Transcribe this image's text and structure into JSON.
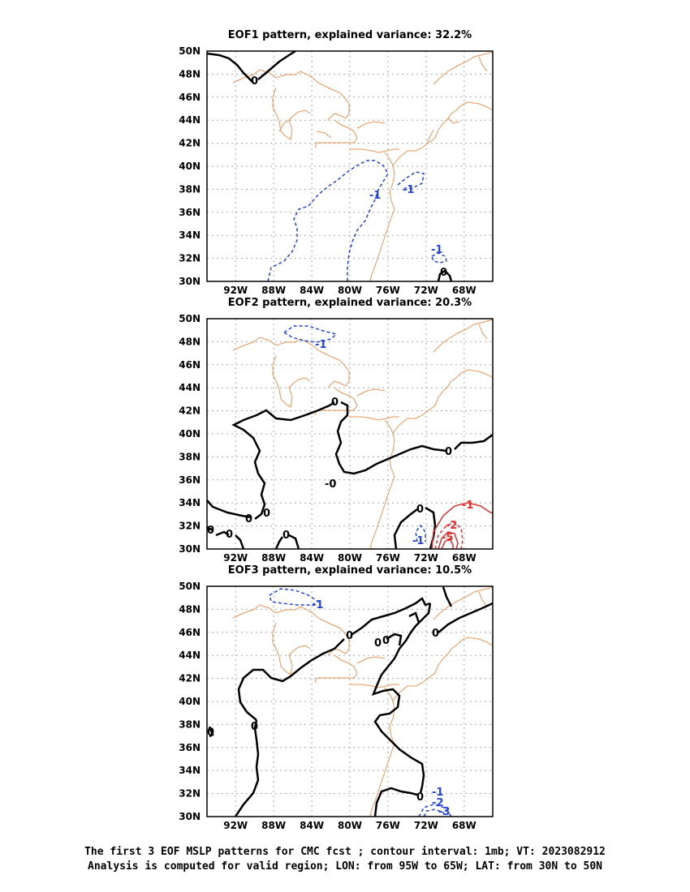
{
  "panels": [
    {
      "title": "EOF1 pattern, explained variance: 32.2%"
    },
    {
      "title": "EOF2 pattern, explained variance: 20.3%"
    },
    {
      "title": "EOF3 pattern, explained variance: 10.5%"
    }
  ],
  "axes": {
    "lat_labels": [
      "50N",
      "48N",
      "46N",
      "44N",
      "42N",
      "40N",
      "38N",
      "36N",
      "34N",
      "32N",
      "30N"
    ],
    "lon_labels": [
      "92W",
      "88W",
      "84W",
      "80W",
      "76W",
      "72W",
      "68W"
    ]
  },
  "colors": {
    "coast": "#e8955a",
    "negative": "#2244dd",
    "positive": "#e03030",
    "zero": "#000000",
    "grid": "#aaaaaa"
  },
  "contour_labels": {
    "p1": [
      "0",
      "-1",
      "-1",
      "-1",
      "0"
    ],
    "p2": [
      "-1",
      "0",
      "0",
      "-0",
      "0",
      "0",
      "0",
      "0",
      "0",
      "0",
      "-1",
      "-1",
      "-2",
      "-5"
    ],
    "p3": [
      "-1",
      "0",
      "0",
      "0",
      "0",
      "0",
      "0",
      "0",
      "-1",
      "-2",
      "-3"
    ]
  },
  "caption": {
    "line1": "The first 3 EOF MSLP patterns for CMC fcst ; contour interval: 1mb; VT: 2023082912",
    "line2": "Analysis is computed for valid region; LON: from 95W to 65W; LAT: from 30N to 50N"
  }
}
